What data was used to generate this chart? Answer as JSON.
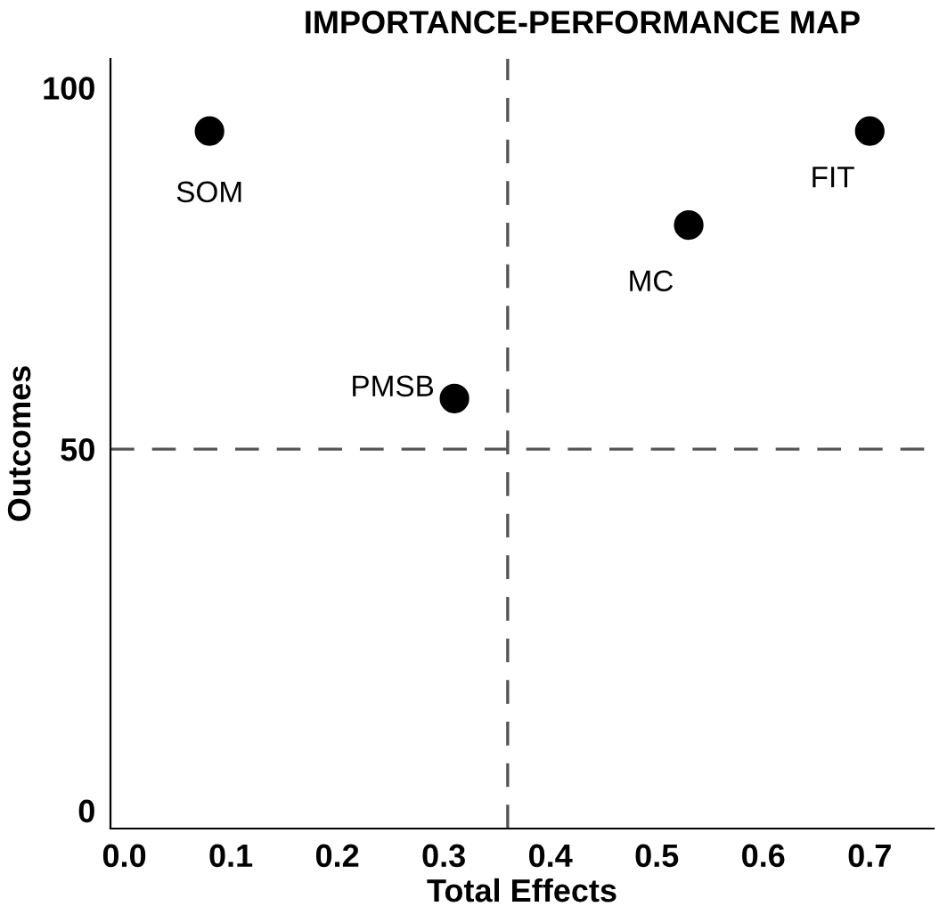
{
  "chart_data": {
    "type": "scatter",
    "title": "IMPORTANCE-PERFORMANCE MAP",
    "xlabel": "Total Effects",
    "ylabel": "Outcomes",
    "series": [
      {
        "color": "#000000",
        "x": [
          0.08,
          0.31,
          0.53,
          0.7
        ],
        "values": [
          94,
          57,
          81,
          94
        ]
      }
    ],
    "annotations": [
      {
        "text": "SOM",
        "x": 0.08,
        "y": 94
      },
      {
        "text": "PMSB",
        "x": 0.31,
        "y": 57
      },
      {
        "text": "MC",
        "x": 0.53,
        "y": 81
      },
      {
        "text": "FIT",
        "x": 0.7,
        "y": 94
      }
    ],
    "ref_lines": [
      {
        "axis": "x",
        "value": 0.36,
        "color": "#555555",
        "line_style": "dashed"
      },
      {
        "axis": "y",
        "value": 50,
        "color": "#555555",
        "line_style": "dashed"
      }
    ],
    "xlim": [
      -0.013,
      0.76
    ],
    "ylim": [
      -2.5,
      104
    ],
    "xticks": [
      {
        "value": 0,
        "label": "0.0"
      },
      0.1,
      0.2,
      0.3,
      0.4,
      0.5,
      0.6,
      0.7
    ],
    "yticks": [
      0,
      50,
      100
    ],
    "marker": "circle",
    "grid": false,
    "legend": false
  }
}
